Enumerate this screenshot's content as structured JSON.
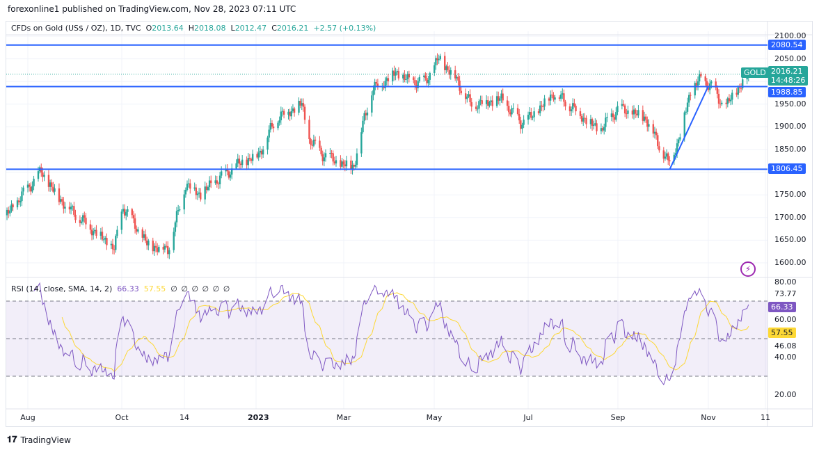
{
  "header": {
    "published": "forexonline1 published on TradingView.com, Nov 28, 2023 07:11 UTC"
  },
  "legend": {
    "symbol": "CFDs on Gold (US$ / OZ), 1D, TVC",
    "o_label": "O",
    "o": "2013.64",
    "h_label": "H",
    "h": "2018.08",
    "l_label": "L",
    "l": "2012.47",
    "c_label": "C",
    "c": "2016.21",
    "change": "+2.57 (+0.13%)"
  },
  "rsi_legend": {
    "label": "RSI (14, close, SMA, 14, 2)",
    "rsi": "66.33",
    "sma": "57.55",
    "empty": [
      "∅",
      "∅",
      "∅",
      "∅",
      "∅",
      "∅"
    ]
  },
  "price_axis": [
    "2100.00",
    "2050.00",
    "1950.00",
    "1900.00",
    "1850.00",
    "1750.00",
    "1700.00",
    "1650.00",
    "1600.00"
  ],
  "price_tags": {
    "top": "2080.54",
    "mid": "1988.85",
    "low": "1806.45",
    "symbol": "GOLD",
    "last": "2016.21",
    "countdown": "14:48:26"
  },
  "rsi_axis": [
    "80.00",
    "73.77",
    "60.00",
    "46.08",
    "40.00",
    "20.00"
  ],
  "rsi_tags": {
    "rsi": "66.33",
    "sma": "57.55"
  },
  "time_axis": [
    "Aug",
    "Oct",
    "14",
    "2023",
    "Mar",
    "May",
    "Jul",
    "Sep",
    "Nov",
    "11"
  ],
  "colors": {
    "up": "#26a69a",
    "down": "#ef5350",
    "line": "#2962ff",
    "rsi": "#7e57c2",
    "sma": "#fdd835"
  },
  "footer": {
    "brand": "TradingView"
  },
  "chart_data": {
    "type": "candlestick",
    "levels": [
      2080.54,
      1988.85,
      1806.45
    ],
    "last": 2016.21,
    "trendline": [
      [
        "2023-10-06",
        1806
      ],
      [
        "2023-11-01",
        1990
      ]
    ],
    "waypoints": [
      [
        "2022-07-18",
        1705
      ],
      [
        "2022-08-01",
        1765
      ],
      [
        "2022-08-10",
        1800
      ],
      [
        "2022-08-20",
        1750
      ],
      [
        "2022-09-01",
        1710
      ],
      [
        "2022-09-15",
        1670
      ],
      [
        "2022-09-28",
        1630
      ],
      [
        "2022-10-04",
        1725
      ],
      [
        "2022-10-20",
        1640
      ],
      [
        "2022-11-03",
        1630
      ],
      [
        "2022-11-10",
        1710
      ],
      [
        "2022-11-15",
        1775
      ],
      [
        "2022-11-25",
        1750
      ],
      [
        "2022-12-05",
        1780
      ],
      [
        "2022-12-20",
        1815
      ],
      [
        "2023-01-03",
        1840
      ],
      [
        "2023-01-15",
        1920
      ],
      [
        "2023-02-01",
        1950
      ],
      [
        "2023-02-06",
        1870
      ],
      [
        "2023-02-15",
        1840
      ],
      [
        "2023-02-28",
        1815
      ],
      [
        "2023-03-08",
        1815
      ],
      [
        "2023-03-15",
        1920
      ],
      [
        "2023-03-20",
        1980
      ],
      [
        "2023-04-05",
        2020
      ],
      [
        "2023-04-14",
        2000
      ],
      [
        "2023-04-25",
        2000
      ],
      [
        "2023-05-04",
        2050
      ],
      [
        "2023-05-15",
        2010
      ],
      [
        "2023-05-25",
        1950
      ],
      [
        "2023-06-15",
        1960
      ],
      [
        "2023-06-28",
        1910
      ],
      [
        "2023-07-05",
        1920
      ],
      [
        "2023-07-20",
        1975
      ],
      [
        "2023-08-01",
        1945
      ],
      [
        "2023-08-20",
        1890
      ],
      [
        "2023-09-01",
        1940
      ],
      [
        "2023-09-20",
        1920
      ],
      [
        "2023-10-05",
        1820
      ],
      [
        "2023-10-12",
        1870
      ],
      [
        "2023-10-20",
        1980
      ],
      [
        "2023-10-27",
        2005
      ],
      [
        "2023-11-03",
        1990
      ],
      [
        "2023-11-12",
        1940
      ],
      [
        "2023-11-20",
        1980
      ],
      [
        "2023-11-28",
        2016
      ]
    ]
  }
}
